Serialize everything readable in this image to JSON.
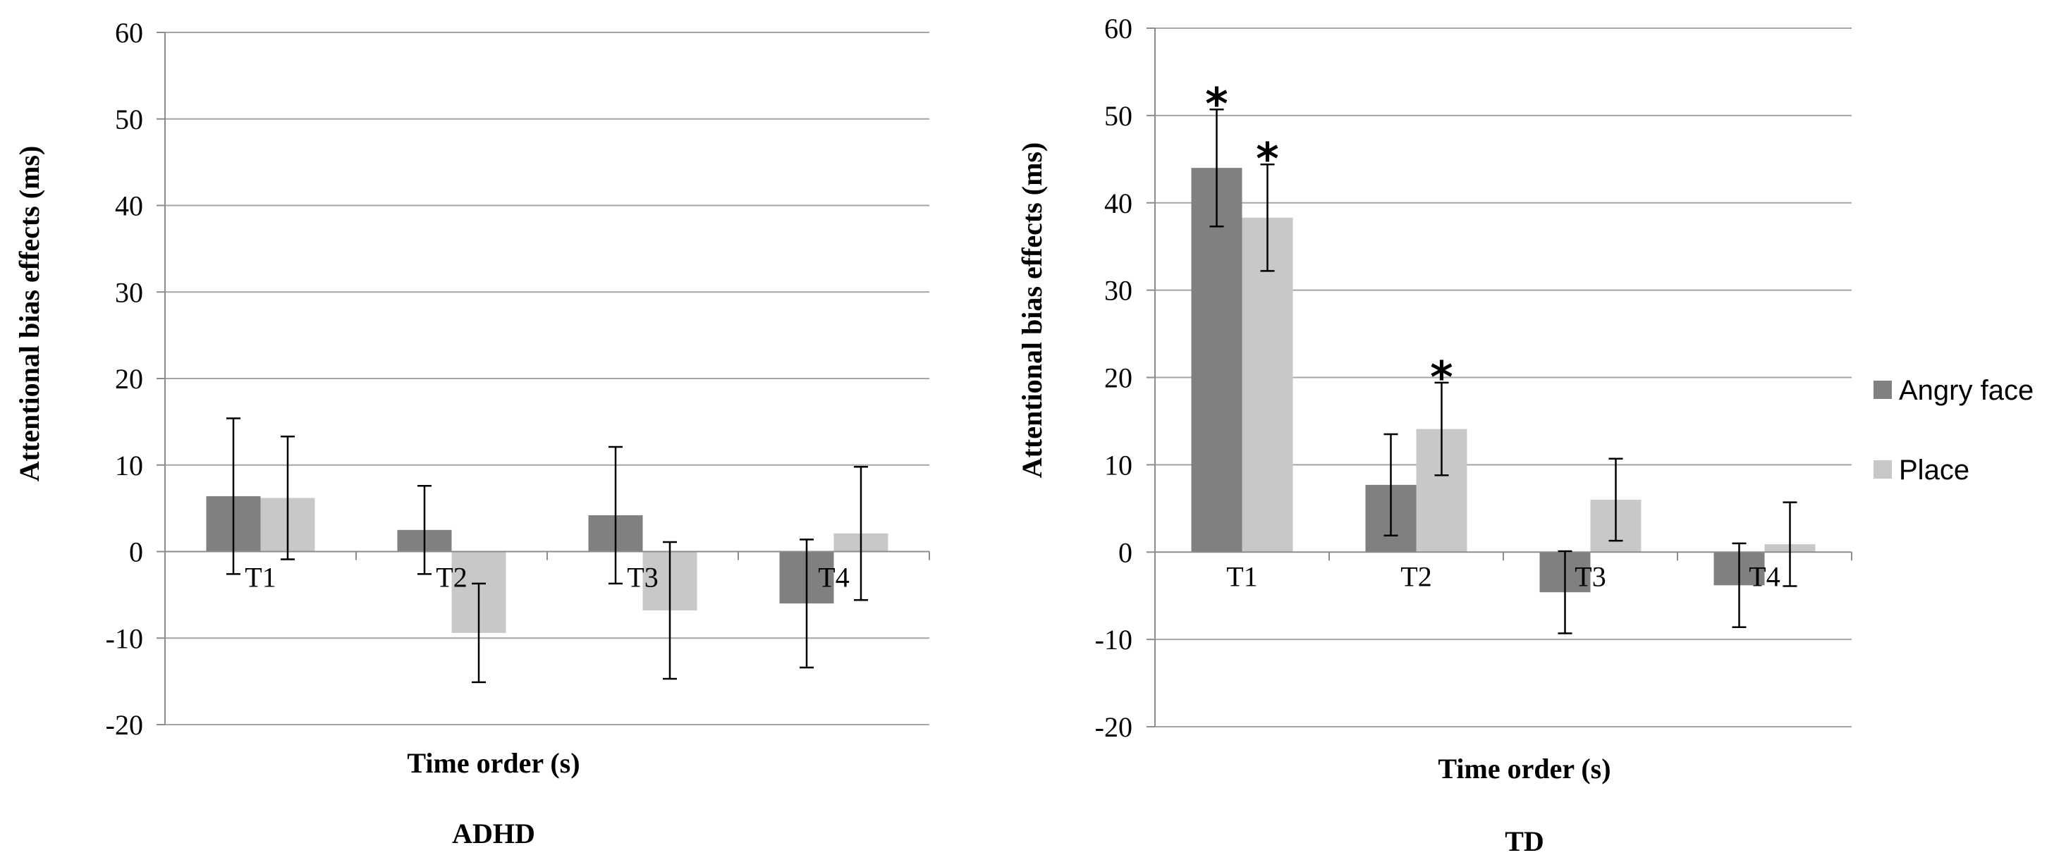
{
  "chart_data": [
    {
      "type": "bar",
      "title": "ADHD",
      "xlabel": "Time order (s)",
      "ylabel": "Attentional bias effects (ms)",
      "ylim": [
        -20,
        60
      ],
      "yticks": [
        -20,
        -10,
        0,
        10,
        20,
        30,
        40,
        50,
        60
      ],
      "grid": true,
      "categories": [
        "T1",
        "T2",
        "T3",
        "T4"
      ],
      "series": [
        {
          "name": "Angry face",
          "color": "#808080",
          "values": [
            6.4,
            2.5,
            4.2,
            -6.0
          ],
          "error": [
            9.0,
            5.1,
            7.9,
            7.4
          ],
          "significant": [
            false,
            false,
            false,
            false
          ]
        },
        {
          "name": "Place",
          "color": "#c8c8c8",
          "values": [
            6.2,
            -9.4,
            -6.8,
            2.1
          ],
          "error": [
            7.1,
            5.7,
            7.9,
            7.7
          ],
          "significant": [
            false,
            false,
            false,
            false
          ]
        }
      ]
    },
    {
      "type": "bar",
      "title": "TD",
      "xlabel": "Time order (s)",
      "ylabel": "Attentional bias effects (ms)",
      "ylim": [
        -20,
        60
      ],
      "yticks": [
        -20,
        -10,
        0,
        10,
        20,
        30,
        40,
        50,
        60
      ],
      "grid": true,
      "categories": [
        "T1",
        "T2",
        "T3",
        "T4"
      ],
      "series": [
        {
          "name": "Angry face",
          "color": "#808080",
          "values": [
            44.0,
            7.7,
            -4.6,
            -3.8
          ],
          "error": [
            6.7,
            5.8,
            4.7,
            4.8
          ],
          "significant": [
            true,
            false,
            false,
            false
          ]
        },
        {
          "name": "Place",
          "color": "#c8c8c8",
          "values": [
            38.3,
            14.1,
            6.0,
            0.9
          ],
          "error": [
            6.1,
            5.3,
            4.7,
            4.8
          ],
          "significant": [
            true,
            true,
            false,
            false
          ]
        }
      ]
    }
  ],
  "legend": {
    "placement": "right",
    "items": [
      {
        "label": "Angry face",
        "color": "#808080"
      },
      {
        "label": "Place",
        "color": "#c8c8c8"
      }
    ]
  },
  "significance_marker": "*"
}
